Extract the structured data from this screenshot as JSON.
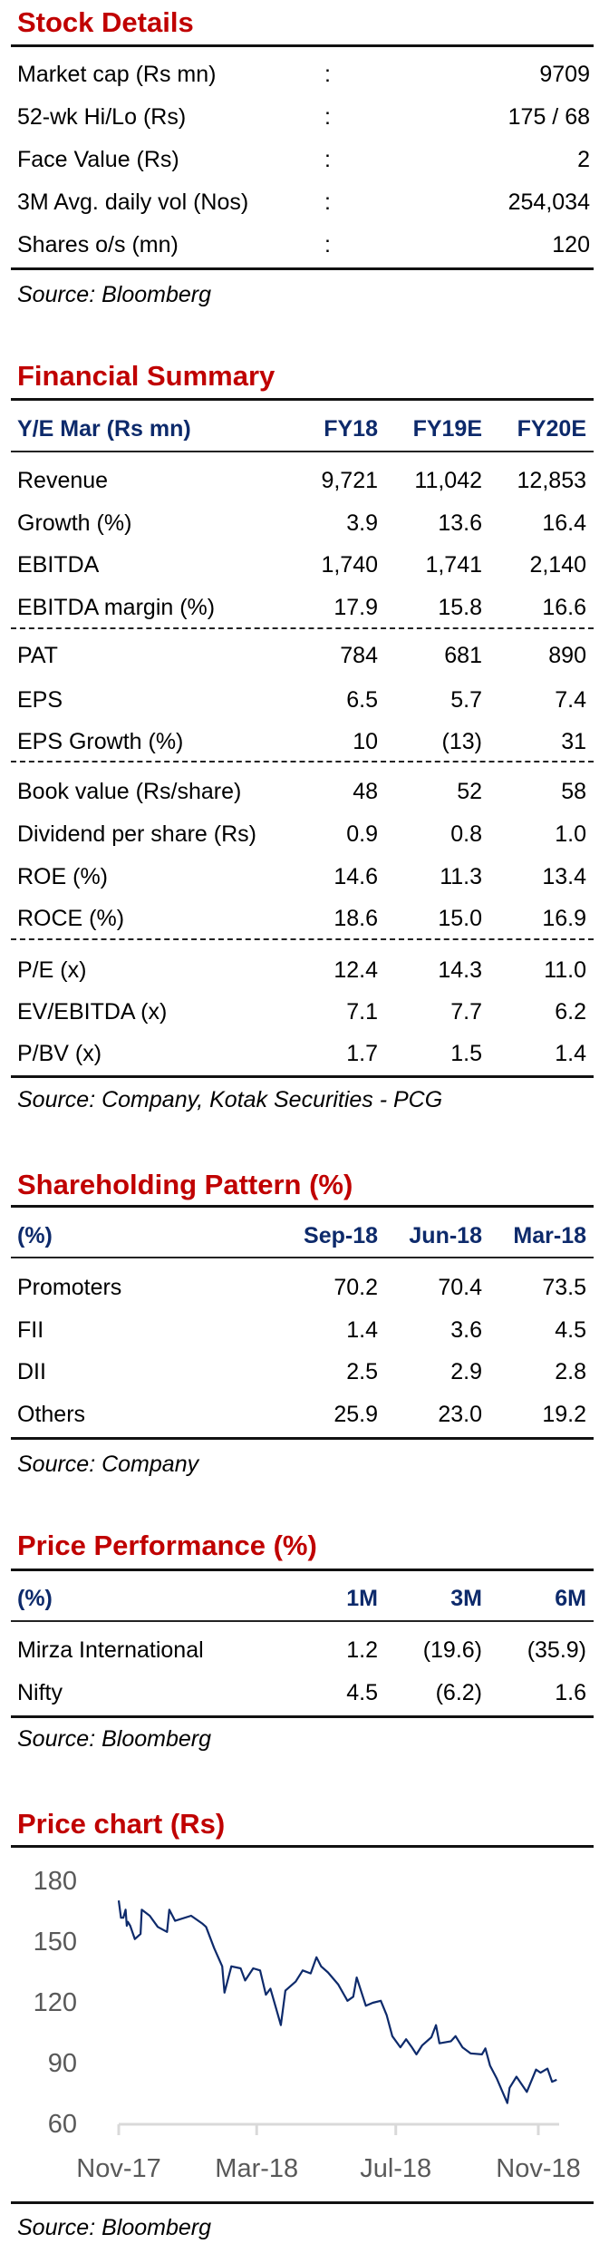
{
  "stock_details": {
    "title": "Stock Details",
    "rows": [
      {
        "label": "Market cap (Rs mn)",
        "sep": ":",
        "value": "9709"
      },
      {
        "label": "52-wk Hi/Lo (Rs)",
        "sep": ":",
        "value": "175 / 68"
      },
      {
        "label": "Face Value (Rs)",
        "sep": ":",
        "value": "2"
      },
      {
        "label": "3M Avg. daily vol (Nos)",
        "sep": ":",
        "value": "254,034"
      },
      {
        "label": "Shares o/s (mn)",
        "sep": ":",
        "value": "120"
      }
    ],
    "source": "Source: Bloomberg"
  },
  "financial_summary": {
    "title": "Financial Summary",
    "header": {
      "label": "Y/E Mar (Rs mn)",
      "columns": [
        "FY18",
        "FY19E",
        "FY20E"
      ]
    },
    "rows": [
      {
        "label": "Revenue",
        "values": [
          "9,721",
          "11,042",
          "12,853"
        ]
      },
      {
        "label": "Growth (%)",
        "values": [
          "3.9",
          "13.6",
          "16.4"
        ]
      },
      {
        "label": "EBITDA",
        "values": [
          "1,740",
          "1,741",
          "2,140"
        ]
      },
      {
        "label": "EBITDA margin (%)",
        "values": [
          "17.9",
          "15.8",
          "16.6"
        ]
      },
      {
        "label": "PAT",
        "values": [
          "784",
          "681",
          "890"
        ]
      },
      {
        "label": "EPS",
        "values": [
          "6.5",
          "5.7",
          "7.4"
        ]
      },
      {
        "label": "EPS Growth (%)",
        "values": [
          "10",
          "(13)",
          "31"
        ]
      },
      {
        "label": "Book value (Rs/share)",
        "values": [
          "48",
          "52",
          "58"
        ]
      },
      {
        "label": "Dividend per share (Rs)",
        "values": [
          "0.9",
          "0.8",
          "1.0"
        ]
      },
      {
        "label": "ROE (%)",
        "values": [
          "14.6",
          "11.3",
          "13.4"
        ]
      },
      {
        "label": "ROCE (%)",
        "values": [
          "18.6",
          "15.0",
          "16.9"
        ]
      },
      {
        "label": "P/E (x)",
        "values": [
          "12.4",
          "14.3",
          "11.0"
        ]
      },
      {
        "label": "EV/EBITDA (x)",
        "values": [
          "7.1",
          "7.7",
          "6.2"
        ]
      },
      {
        "label": "P/BV (x)",
        "values": [
          "1.7",
          "1.5",
          "1.4"
        ]
      }
    ],
    "source": "Source: Company, Kotak Securities - PCG"
  },
  "shareholding_pattern": {
    "title": "Shareholding Pattern (%)",
    "header": {
      "label": "(%)",
      "columns": [
        "Sep-18",
        "Jun-18",
        "Mar-18"
      ]
    },
    "rows": [
      {
        "label": "Promoters",
        "values": [
          "70.2",
          "70.4",
          "73.5"
        ]
      },
      {
        "label": "FII",
        "values": [
          "1.4",
          "3.6",
          "4.5"
        ]
      },
      {
        "label": "DII",
        "values": [
          "2.5",
          "2.9",
          "2.8"
        ]
      },
      {
        "label": "Others",
        "values": [
          "25.9",
          "23.0",
          "19.2"
        ]
      }
    ],
    "source": "Source: Company"
  },
  "price_performance": {
    "title": "Price Performance (%)",
    "header": {
      "label": "(%)",
      "columns": [
        "1M",
        "3M",
        "6M"
      ]
    },
    "rows": [
      {
        "label": "Mirza International",
        "values": [
          "1.2",
          "(19.6)",
          "(35.9)"
        ]
      },
      {
        "label": "Nifty",
        "values": [
          "4.5",
          "(6.2)",
          "1.6"
        ]
      }
    ],
    "source": "Source: Bloomberg"
  },
  "chart_data": {
    "type": "line",
    "title": "Price chart (Rs)",
    "xlabel": "",
    "ylabel": "",
    "x_unit": "days since 2017-11-01",
    "ylim": [
      60,
      180
    ],
    "yticks": [
      "180",
      "150",
      "120",
      "90",
      "60"
    ],
    "xticks": [
      {
        "label": "Nov-17",
        "day": 0
      },
      {
        "label": "Mar-18",
        "day": 120
      },
      {
        "label": "Jul-18",
        "day": 241
      },
      {
        "label": "Nov-18",
        "day": 365
      }
    ],
    "grid": false,
    "series": [
      {
        "name": "Price",
        "color": "#0d2a6b",
        "x": [
          0,
          2,
          4,
          6,
          7,
          8,
          10,
          14,
          19,
          20,
          27,
          34,
          42,
          44,
          49,
          63,
          73,
          76,
          83,
          90,
          92,
          98,
          106,
          110,
          117,
          123,
          128,
          132,
          137,
          141,
          145,
          154,
          160,
          167,
          172,
          176,
          182,
          191,
          199,
          204,
          207,
          215,
          221,
          228,
          233,
          238,
          245,
          250,
          255,
          259,
          264,
          272,
          276,
          279,
          289,
          293,
          299,
          306,
          316,
          319,
          323,
          329,
          338,
          340,
          346,
          355,
          363,
          367,
          373,
          377,
          381
        ],
        "y": [
          170.5,
          162,
          162,
          166,
          158,
          160,
          158,
          151.5,
          154,
          166,
          163,
          157.5,
          155,
          166,
          160.5,
          163,
          159,
          157.5,
          147,
          138,
          125,
          138,
          137,
          131,
          137,
          136,
          124,
          127,
          117,
          109,
          126,
          130.5,
          136,
          134.5,
          142.5,
          138,
          135,
          129,
          121,
          123,
          132.5,
          118.5,
          120,
          121,
          114,
          103.5,
          98,
          102,
          98,
          94.5,
          99,
          103,
          109,
          100,
          101,
          103.5,
          98,
          95,
          94.5,
          97.5,
          89,
          82.5,
          70.5,
          78,
          83.5,
          76,
          87,
          85.5,
          87.5,
          81,
          82
        ]
      }
    ],
    "source": "Source: Bloomberg"
  }
}
